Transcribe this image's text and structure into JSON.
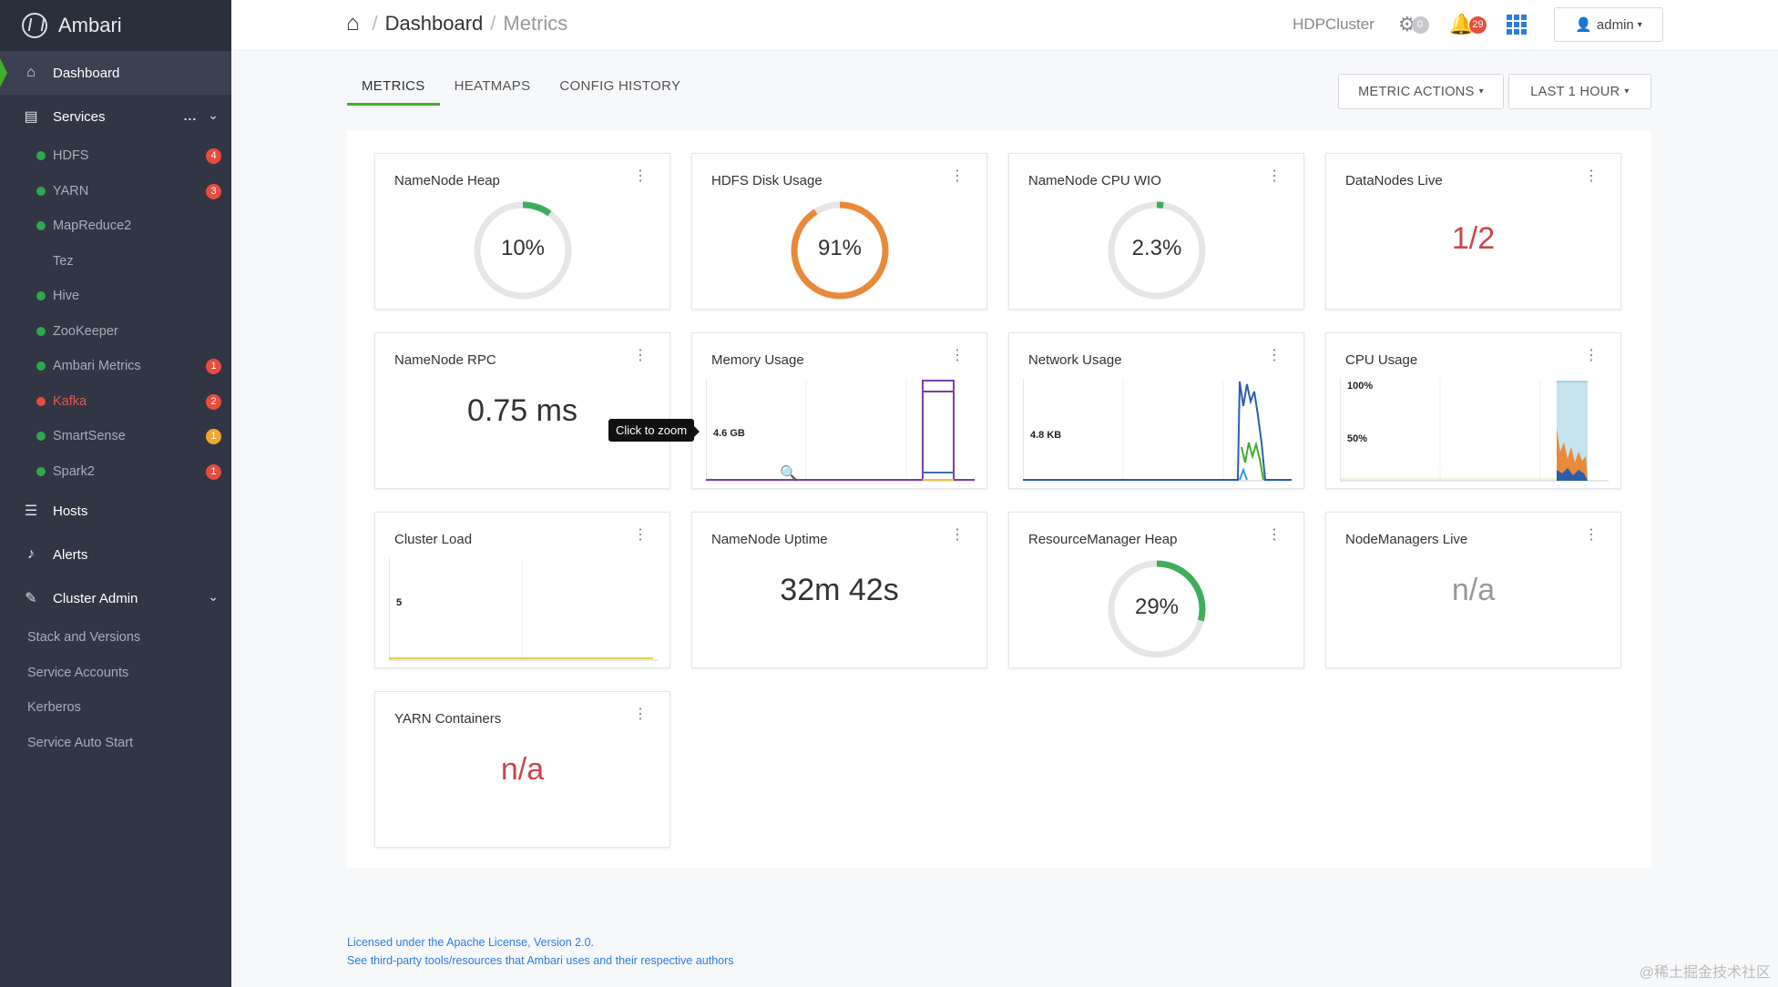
{
  "app": {
    "name": "Ambari"
  },
  "sidebar": {
    "dashboard": "Dashboard",
    "services": "Services",
    "services_more": "...",
    "service_items": [
      {
        "label": "HDFS",
        "status": "#2fa84f",
        "badge": "4",
        "badge_color": "#e74c3c"
      },
      {
        "label": "YARN",
        "status": "#2fa84f",
        "badge": "3",
        "badge_color": "#e74c3c"
      },
      {
        "label": "MapReduce2",
        "status": "#2fa84f",
        "badge": "",
        "badge_color": ""
      },
      {
        "label": "Tez",
        "status": "",
        "badge": "",
        "badge_color": ""
      },
      {
        "label": "Hive",
        "status": "#2fa84f",
        "badge": "",
        "badge_color": ""
      },
      {
        "label": "ZooKeeper",
        "status": "#2fa84f",
        "badge": "",
        "badge_color": ""
      },
      {
        "label": "Ambari Metrics",
        "status": "#2fa84f",
        "badge": "1",
        "badge_color": "#e74c3c"
      },
      {
        "label": "Kafka",
        "status": "#e74c3c",
        "badge": "2",
        "badge_color": "#e74c3c"
      },
      {
        "label": "SmartSense",
        "status": "#2fa84f",
        "badge": "1",
        "badge_color": "#f0a830"
      },
      {
        "label": "Spark2",
        "status": "#2fa84f",
        "badge": "1",
        "badge_color": "#e74c3c"
      }
    ],
    "hosts": "Hosts",
    "alerts": "Alerts",
    "cluster_admin": "Cluster Admin",
    "admin_items": [
      "Stack and Versions",
      "Service Accounts",
      "Kerberos",
      "Service Auto Start"
    ]
  },
  "header": {
    "breadcrumb": [
      "Dashboard",
      "Metrics"
    ],
    "cluster": "HDPCluster",
    "ops_count": "0",
    "alerts_count": "29",
    "user": "admin"
  },
  "tabs": [
    "METRICS",
    "HEATMAPS",
    "CONFIG HISTORY"
  ],
  "actions": {
    "metric_actions": "METRIC ACTIONS",
    "time_range": "LAST 1 HOUR"
  },
  "widgets": {
    "namenode_heap": {
      "title": "NameNode Heap",
      "value": "10%",
      "fraction": 0.1,
      "color": "#3fae5a"
    },
    "hdfs_disk": {
      "title": "HDFS Disk Usage",
      "value": "91%",
      "fraction": 0.91,
      "color": "#e88a3a"
    },
    "cpu_wio": {
      "title": "NameNode CPU WIO",
      "value": "2.3%",
      "fraction": 0.023,
      "color": "#3fae5a"
    },
    "datanodes": {
      "title": "DataNodes Live",
      "value": "1/2"
    },
    "rpc": {
      "title": "NameNode RPC",
      "value": "0.75 ms"
    },
    "memory": {
      "title": "Memory Usage",
      "label": "4.6 GB"
    },
    "network": {
      "title": "Network Usage",
      "label": "4.8 KB"
    },
    "cpu": {
      "title": "CPU Usage",
      "label_top": "100%",
      "label_mid": "50%"
    },
    "cluster_load": {
      "title": "Cluster Load",
      "label": "5"
    },
    "uptime": {
      "title": "NameNode Uptime",
      "value": "32m 42s"
    },
    "rm_heap": {
      "title": "ResourceManager Heap",
      "value": "29%",
      "fraction": 0.29,
      "color": "#3fae5a"
    },
    "nodemanagers": {
      "title": "NodeManagers Live",
      "value": "n/a"
    },
    "yarn_containers": {
      "title": "YARN Containers",
      "value": "n/a"
    }
  },
  "tooltip": "Click to zoom",
  "footer": {
    "line1": "Licensed under the Apache License, Version 2.0.",
    "line2": "See third-party tools/resources that Ambari uses and their respective authors"
  },
  "watermark": "@稀土掘金技术社区"
}
